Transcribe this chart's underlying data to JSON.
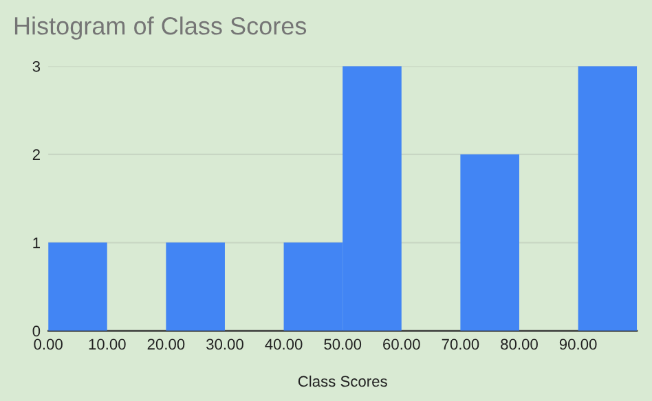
{
  "chart_data": {
    "type": "histogram",
    "title": "Histogram of Class Scores",
    "xlabel": "Class Scores",
    "bins": [
      0,
      10,
      20,
      30,
      40,
      50,
      60,
      70,
      80,
      90,
      100
    ],
    "values": [
      1,
      0,
      1,
      0,
      1,
      3,
      0,
      2,
      0,
      3
    ],
    "color": "#4285f4",
    "xlim": [
      0,
      100
    ],
    "xticks": [
      {
        "value": 0,
        "label": "0.00"
      },
      {
        "value": 10,
        "label": "10.00"
      },
      {
        "value": 20,
        "label": "20.00"
      },
      {
        "value": 30,
        "label": "30.00"
      },
      {
        "value": 40,
        "label": "40.00"
      },
      {
        "value": 50,
        "label": "50.00"
      },
      {
        "value": 60,
        "label": "60.00"
      },
      {
        "value": 70,
        "label": "70.00"
      },
      {
        "value": 80,
        "label": "80.00"
      },
      {
        "value": 90,
        "label": "90.00"
      }
    ],
    "ylim": [
      0,
      3
    ],
    "yticks": [
      0,
      1,
      2,
      3
    ],
    "grid": "y"
  }
}
